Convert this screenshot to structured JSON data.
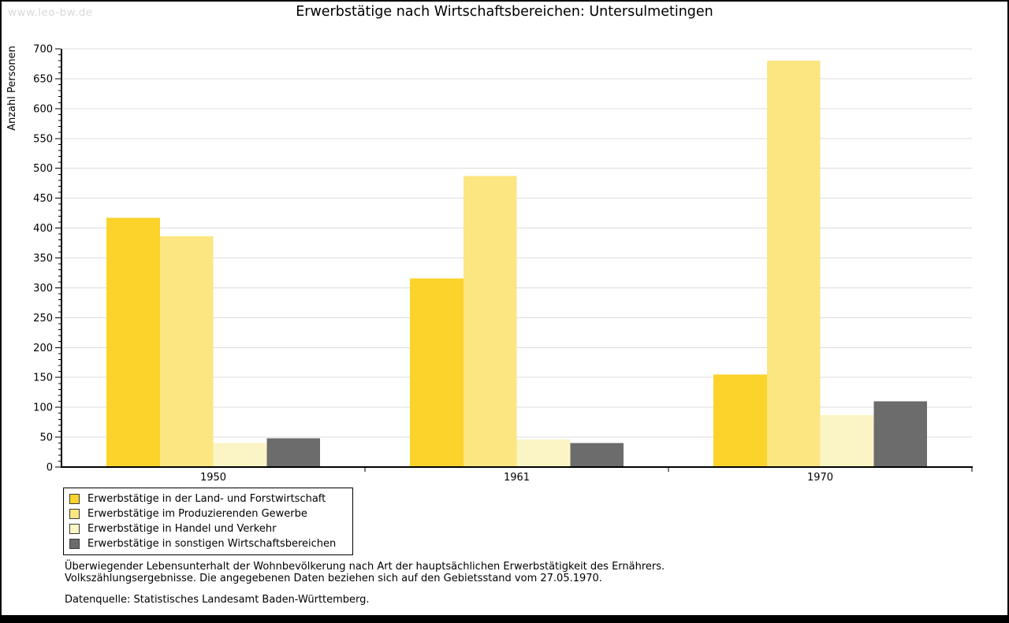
{
  "page": {
    "watermark": "www.leo-bw.de",
    "title": "Erwerbstätige nach Wirtschaftsbereichen: Untersulmetingen"
  },
  "chart_data": {
    "type": "bar",
    "title": "Erwerbstätige nach Wirtschaftsbereichen: Untersulmetingen",
    "xlabel": "",
    "ylabel": "Anzahl Personen",
    "ylim": [
      0,
      700
    ],
    "ytick_step": 50,
    "y_minor_tick_step": 10,
    "grid": true,
    "legend_position": "bottom-left",
    "categories": [
      "1950",
      "1961",
      "1970"
    ],
    "series": [
      {
        "name": "Erwerbstätige in der Land- und Forstwirtschaft",
        "color": "#FCD32B",
        "values": [
          417,
          316,
          155
        ]
      },
      {
        "name": "Erwerbstätige im Produzierenden Gewerbe",
        "color": "#FBE681",
        "values": [
          386,
          487,
          680
        ]
      },
      {
        "name": "Erwerbstätige in Handel und Verkehr",
        "color": "#FBF4C4",
        "values": [
          40,
          46,
          87
        ]
      },
      {
        "name": "Erwerbstätige in sonstigen Wirtschaftsbereichen",
        "color": "#6C6C6C",
        "values": [
          48,
          40,
          110
        ]
      }
    ]
  },
  "footer": {
    "note_line1": "Überwiegender Lebensunterhalt der Wohnbevölkerung nach Art der hauptsächlichen Erwerbstätigkeit des Ernährers.",
    "note_line2": "Volkszählungsergebnisse. Die angegebenen Daten beziehen sich auf den Gebietsstand vom 27.05.1970.",
    "source": "Datenquelle: Statistisches Landesamt Baden-Württemberg."
  },
  "colors": {
    "background": "#FFFFFF",
    "frame": "#000000",
    "grid": "#DCDCDC",
    "axis": "#000000",
    "text": "#000000",
    "watermark": "#D9D9D9"
  }
}
